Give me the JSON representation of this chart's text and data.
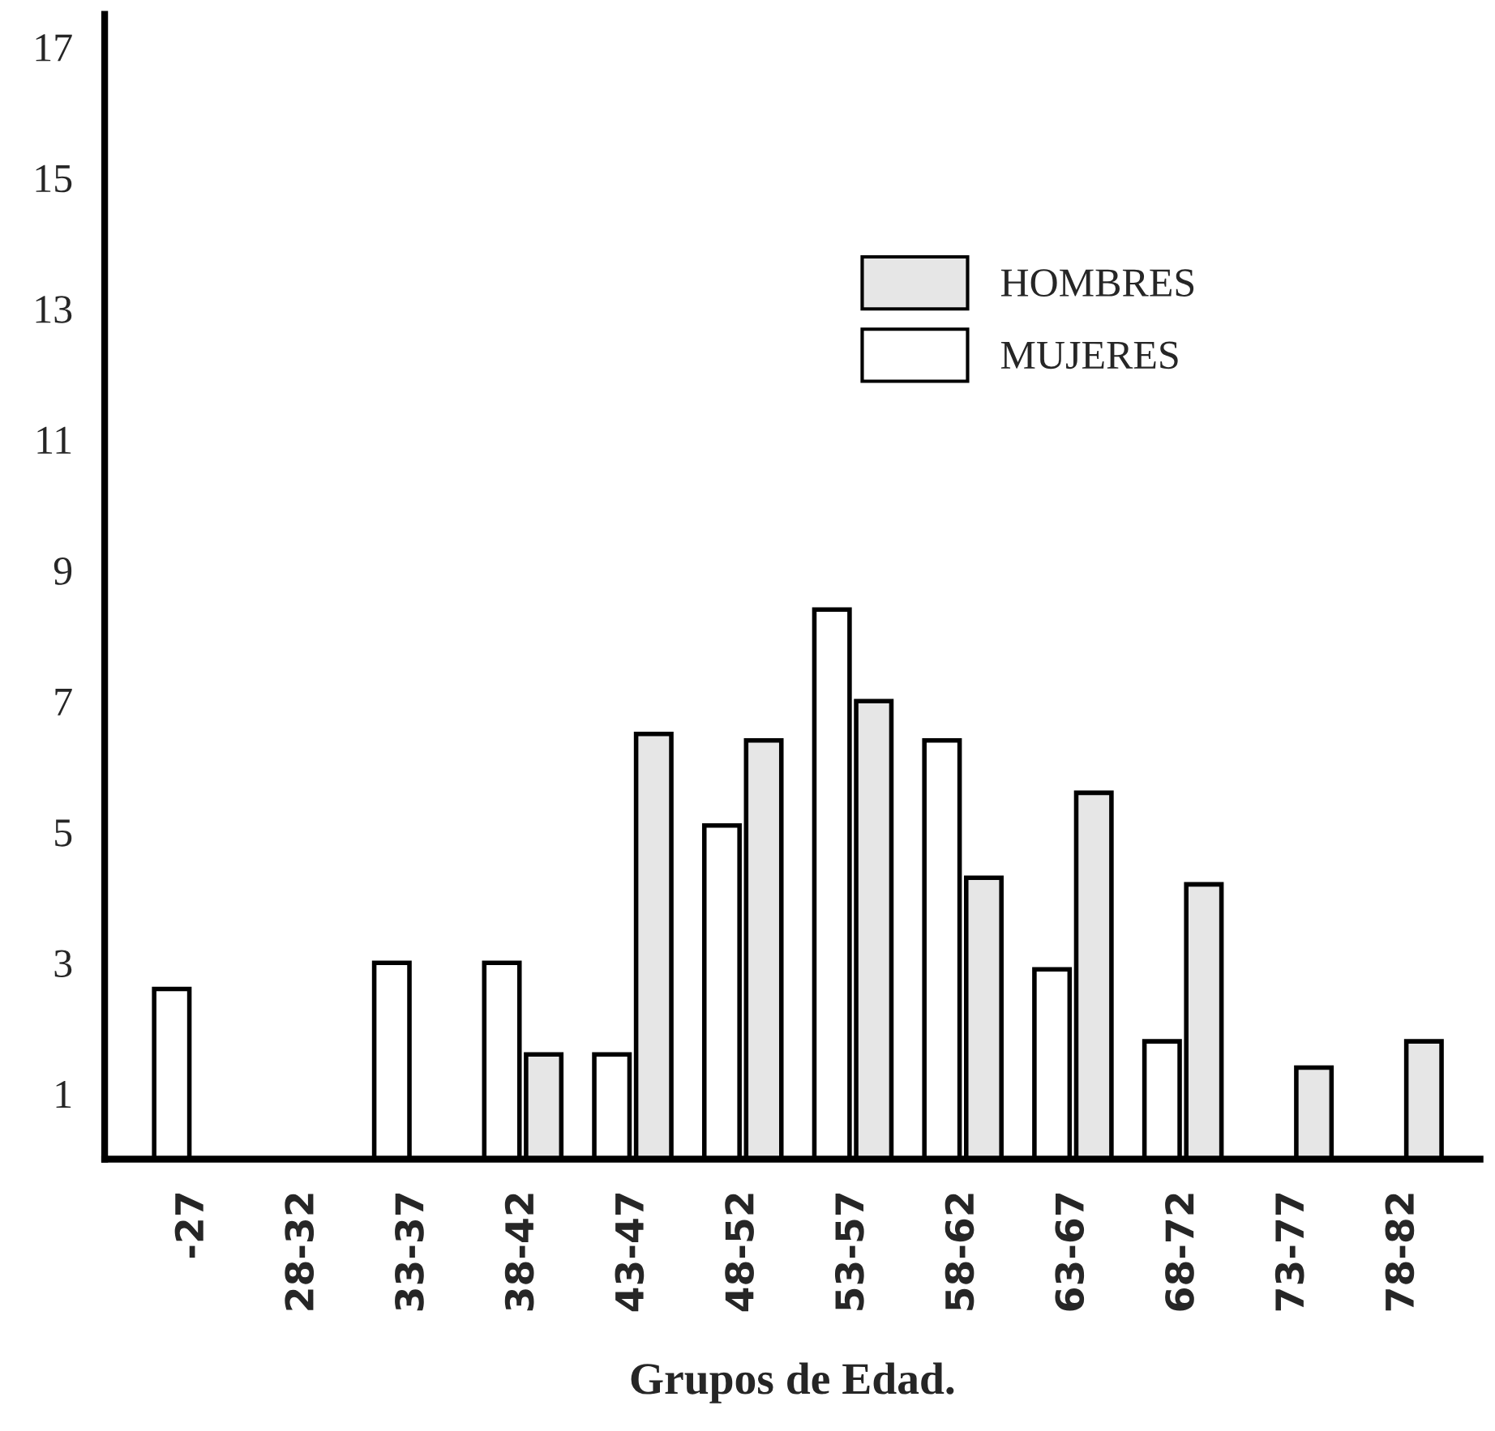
{
  "chart_data": {
    "type": "bar",
    "xlabel": "Grupos de Edad.",
    "categories": [
      "-27",
      "28-32",
      "33-37",
      "38-42",
      "43-47",
      "48-52",
      "53-57",
      "58-62",
      "63-67",
      "68-72",
      "73-77",
      "78-82"
    ],
    "series": [
      {
        "name": "HOMBRES",
        "color": "#e6e6e6",
        "values": [
          null,
          null,
          null,
          1.6,
          6.5,
          6.4,
          7.0,
          4.3,
          5.6,
          4.2,
          1.4,
          1.8
        ]
      },
      {
        "name": "MUJERES",
        "color": "#ffffff",
        "values": [
          2.6,
          null,
          3.0,
          3.0,
          1.6,
          5.1,
          8.4,
          6.4,
          2.9,
          1.8,
          null,
          null
        ]
      }
    ],
    "ylim": [
      0,
      17.5
    ],
    "yticks": [
      1,
      3,
      5,
      7,
      9,
      11,
      13,
      15,
      17
    ],
    "grid": false,
    "legend": "top right"
  }
}
